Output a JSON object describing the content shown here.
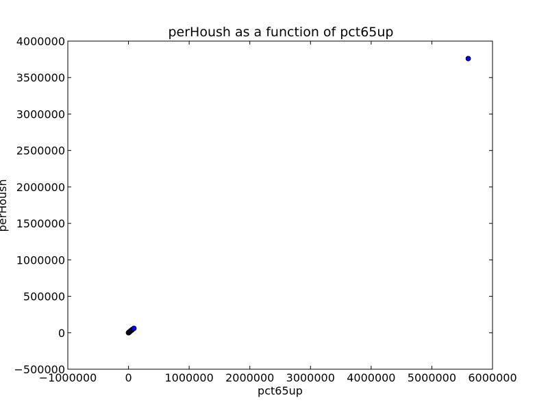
{
  "chart_data": {
    "type": "scatter",
    "title": "perHoush as a function of pct65up",
    "xlabel": "pct65up",
    "ylabel": "perHoush",
    "xlim": [
      -1000000,
      6000000
    ],
    "ylim": [
      -500000,
      4000000
    ],
    "xticks": [
      -1000000,
      0,
      1000000,
      2000000,
      3000000,
      4000000,
      5000000,
      6000000
    ],
    "yticks": [
      -500000,
      0,
      500000,
      1000000,
      1500000,
      2000000,
      2500000,
      3000000,
      3500000,
      4000000
    ],
    "xtick_labels": [
      "−1000000",
      "0",
      "1000000",
      "2000000",
      "3000000",
      "4000000",
      "5000000",
      "6000000"
    ],
    "ytick_labels": [
      "−500000",
      "0",
      "500000",
      "1000000",
      "1500000",
      "2000000",
      "2500000",
      "3000000",
      "3500000",
      "4000000"
    ],
    "grid": false,
    "marker_color": "#0000ff",
    "marker_edge_color": "#000000",
    "points": [
      {
        "x": 0,
        "y": 0
      },
      {
        "x": 2000,
        "y": 1500
      },
      {
        "x": 5000,
        "y": 3000
      },
      {
        "x": 8000,
        "y": 6000
      },
      {
        "x": 12000,
        "y": 9000
      },
      {
        "x": 15000,
        "y": 11000
      },
      {
        "x": 20000,
        "y": 14000
      },
      {
        "x": 25000,
        "y": 18000
      },
      {
        "x": 30000,
        "y": 21000
      },
      {
        "x": 35000,
        "y": 25000
      },
      {
        "x": 40000,
        "y": 28000
      },
      {
        "x": 45000,
        "y": 32000
      },
      {
        "x": 50000,
        "y": 35000
      },
      {
        "x": 55000,
        "y": 38000
      },
      {
        "x": 60000,
        "y": 42000
      },
      {
        "x": 70000,
        "y": 48000
      },
      {
        "x": 80000,
        "y": 55000
      },
      {
        "x": 90000,
        "y": 60000
      },
      {
        "x": 5600000,
        "y": 3760000
      }
    ]
  }
}
